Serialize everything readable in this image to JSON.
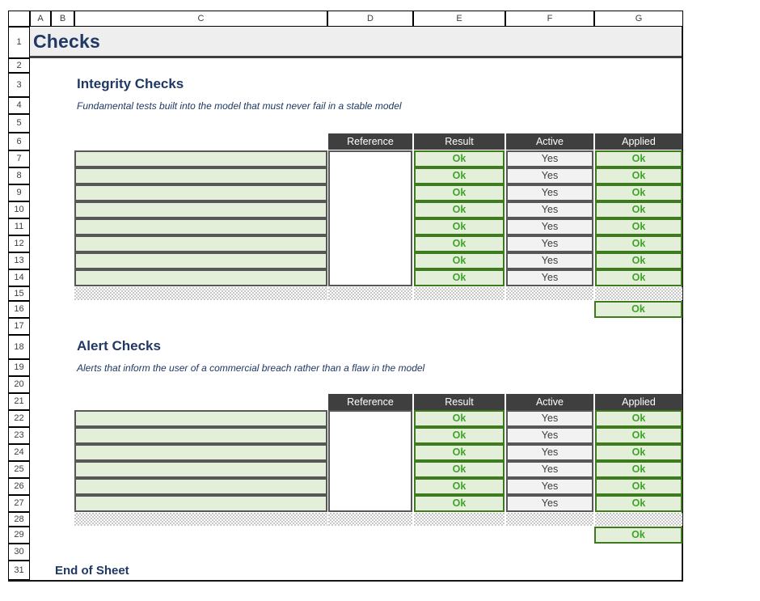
{
  "sheet_title": "Checks",
  "grid": {
    "column_labels": [
      "",
      "A",
      "B",
      "C",
      "D",
      "E",
      "F",
      "G"
    ],
    "row_numbers": [
      "1",
      "2",
      "3",
      "4",
      "5",
      "6",
      "7",
      "8",
      "9",
      "10",
      "11",
      "12",
      "13",
      "14",
      "15",
      "16",
      "17",
      "18",
      "19",
      "20",
      "21",
      "22",
      "23",
      "24",
      "25",
      "26",
      "27",
      "28",
      "29",
      "30",
      "31"
    ]
  },
  "sections": [
    {
      "title": "Integrity Checks",
      "subtitle": "Fundamental tests built into the model that must never fail in a stable model",
      "table": {
        "headers": [
          "Reference",
          "Result",
          "Active",
          "Applied"
        ],
        "rows": [
          {
            "check": "",
            "reference": "",
            "result": "Ok",
            "active": "Yes",
            "applied": "Ok"
          },
          {
            "check": "",
            "reference": "",
            "result": "Ok",
            "active": "Yes",
            "applied": "Ok"
          },
          {
            "check": "",
            "reference": "",
            "result": "Ok",
            "active": "Yes",
            "applied": "Ok"
          },
          {
            "check": "",
            "reference": "",
            "result": "Ok",
            "active": "Yes",
            "applied": "Ok"
          },
          {
            "check": "",
            "reference": "",
            "result": "Ok",
            "active": "Yes",
            "applied": "Ok"
          },
          {
            "check": "",
            "reference": "",
            "result": "Ok",
            "active": "Yes",
            "applied": "Ok"
          },
          {
            "check": "",
            "reference": "",
            "result": "Ok",
            "active": "Yes",
            "applied": "Ok"
          },
          {
            "check": "",
            "reference": "",
            "result": "Ok",
            "active": "Yes",
            "applied": "Ok"
          }
        ],
        "summary": "Ok"
      }
    },
    {
      "title": "Alert Checks",
      "subtitle": "Alerts that inform the user of a commercial breach rather than a flaw in the model",
      "table": {
        "headers": [
          "Reference",
          "Result",
          "Active",
          "Applied"
        ],
        "rows": [
          {
            "check": "",
            "reference": "",
            "result": "Ok",
            "active": "Yes",
            "applied": "Ok"
          },
          {
            "check": "",
            "reference": "",
            "result": "Ok",
            "active": "Yes",
            "applied": "Ok"
          },
          {
            "check": "",
            "reference": "",
            "result": "Ok",
            "active": "Yes",
            "applied": "Ok"
          },
          {
            "check": "",
            "reference": "",
            "result": "Ok",
            "active": "Yes",
            "applied": "Ok"
          },
          {
            "check": "",
            "reference": "",
            "result": "Ok",
            "active": "Yes",
            "applied": "Ok"
          },
          {
            "check": "",
            "reference": "",
            "result": "Ok",
            "active": "Yes",
            "applied": "Ok"
          }
        ],
        "summary": "Ok"
      }
    }
  ],
  "footer_text": "End of Sheet",
  "colors": {
    "accent_navy": "#1f3864",
    "table_header_fill": "#3f3f3f",
    "ok_fill": "#e4efd9",
    "ok_border": "#3e7b1e",
    "ok_text": "#3fa32a",
    "active_fill": "#f2f2f2",
    "active_border": "#575757",
    "title_band_fill": "#eeeeee"
  }
}
